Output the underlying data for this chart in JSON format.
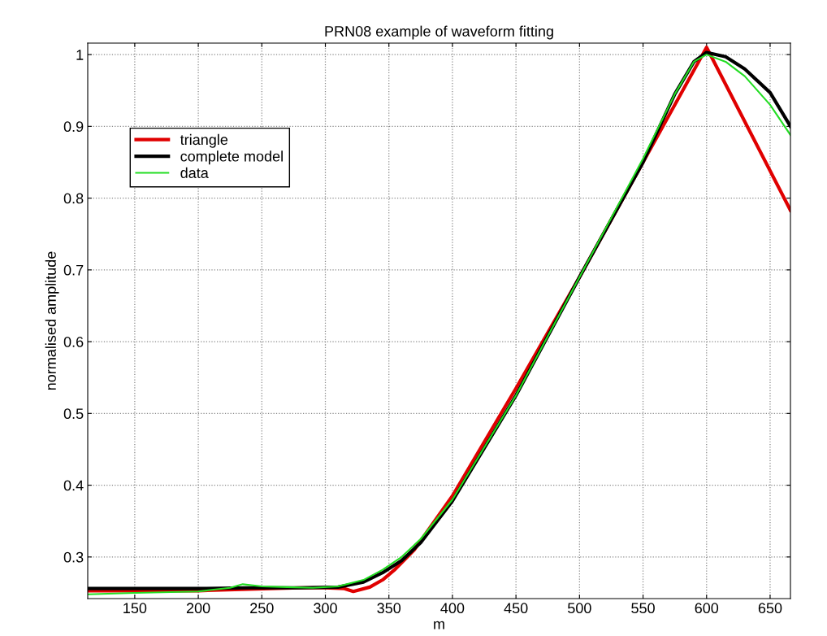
{
  "chart_data": {
    "type": "line",
    "title": "PRN08 example of waveform fitting",
    "xlabel": "m",
    "ylabel": "normalised amplitude",
    "xlim": [
      113,
      666
    ],
    "ylim": [
      0.242,
      1.016
    ],
    "xticks": [
      150,
      200,
      250,
      300,
      350,
      400,
      450,
      500,
      550,
      600,
      650
    ],
    "yticks": [
      0.3,
      0.4,
      0.5,
      0.6,
      0.7,
      0.8,
      0.9,
      {
        "value": 1,
        "label": "1"
      }
    ],
    "grid": true,
    "legend": "top left",
    "line_style": "solid",
    "marker": "none",
    "series": [
      {
        "name": "triangle",
        "color": "#e00000",
        "x": [
          113,
          200,
          240,
          280,
          300,
          315,
          322,
          335,
          345,
          355,
          370,
          400,
          450,
          500,
          550,
          600,
          666
        ],
        "values": [
          0.253,
          0.253,
          0.255,
          0.257,
          0.257,
          0.256,
          0.252,
          0.258,
          0.268,
          0.283,
          0.31,
          0.385,
          0.535,
          0.69,
          0.85,
          1.01,
          0.783
        ]
      },
      {
        "name": "complete model",
        "color": "#000000",
        "x": [
          113,
          200,
          240,
          280,
          310,
          330,
          345,
          360,
          375,
          400,
          450,
          500,
          550,
          575,
          590,
          600,
          615,
          630,
          650,
          666
        ],
        "values": [
          0.256,
          0.256,
          0.257,
          0.257,
          0.258,
          0.265,
          0.278,
          0.295,
          0.32,
          0.378,
          0.525,
          0.69,
          0.85,
          0.945,
          0.99,
          1.003,
          0.997,
          0.98,
          0.947,
          0.9
        ]
      },
      {
        "name": "data",
        "color": "#22dd22",
        "x": [
          113,
          150,
          200,
          225,
          235,
          250,
          270,
          290,
          310,
          330,
          345,
          360,
          375,
          400,
          450,
          500,
          550,
          575,
          590,
          600,
          615,
          630,
          650,
          666
        ],
        "values": [
          0.248,
          0.25,
          0.252,
          0.257,
          0.262,
          0.259,
          0.258,
          0.257,
          0.259,
          0.268,
          0.282,
          0.3,
          0.325,
          0.38,
          0.525,
          0.69,
          0.855,
          0.945,
          0.99,
          1.0,
          0.99,
          0.97,
          0.93,
          0.888
        ]
      }
    ]
  }
}
